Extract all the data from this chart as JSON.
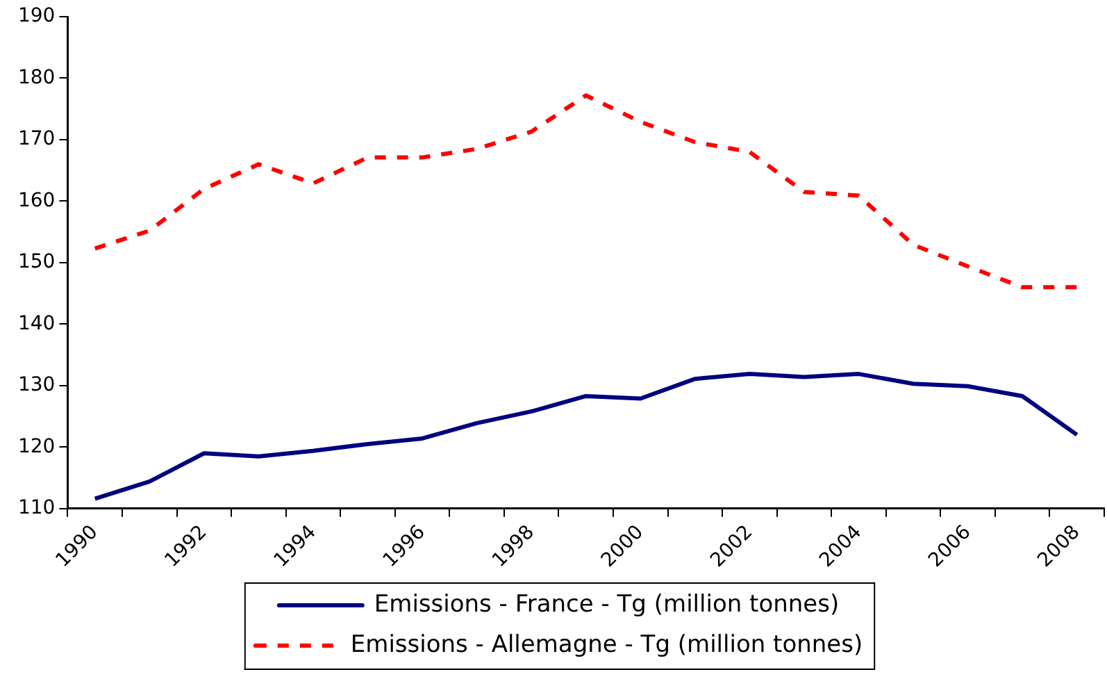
{
  "chart_data": {
    "type": "line",
    "categories": [
      "1990",
      null,
      "1992",
      null,
      "1994",
      null,
      "1996",
      null,
      "1998",
      null,
      "2000",
      null,
      "2002",
      null,
      "2004",
      null,
      "2006",
      null,
      "2008"
    ],
    "series": [
      {
        "name": "Emissions - France - Tg (million tonnes)",
        "color": "#000080",
        "line_style": "solid",
        "values": [
          111.6,
          114.4,
          119.0,
          118.5,
          119.4,
          120.5,
          121.4,
          123.9,
          125.8,
          128.3,
          127.9,
          131.1,
          131.9,
          131.4,
          131.9,
          130.3,
          129.9,
          128.3,
          122.0
        ]
      },
      {
        "name": "Emissions - Allemagne - Tg (million tonnes)",
        "color": "#ff0000",
        "line_style": "dashed",
        "values": [
          152.3,
          155.2,
          162.0,
          166.0,
          162.9,
          167.1,
          167.1,
          168.5,
          171.3,
          177.2,
          172.9,
          169.6,
          168.0,
          161.5,
          160.9,
          152.9,
          149.4,
          146.0,
          146.0
        ]
      }
    ],
    "ylim": [
      110,
      190
    ],
    "yticks": [
      110,
      120,
      130,
      140,
      150,
      160,
      170,
      180,
      190
    ],
    "grid": false,
    "legend": "bottom",
    "marker": "none"
  }
}
